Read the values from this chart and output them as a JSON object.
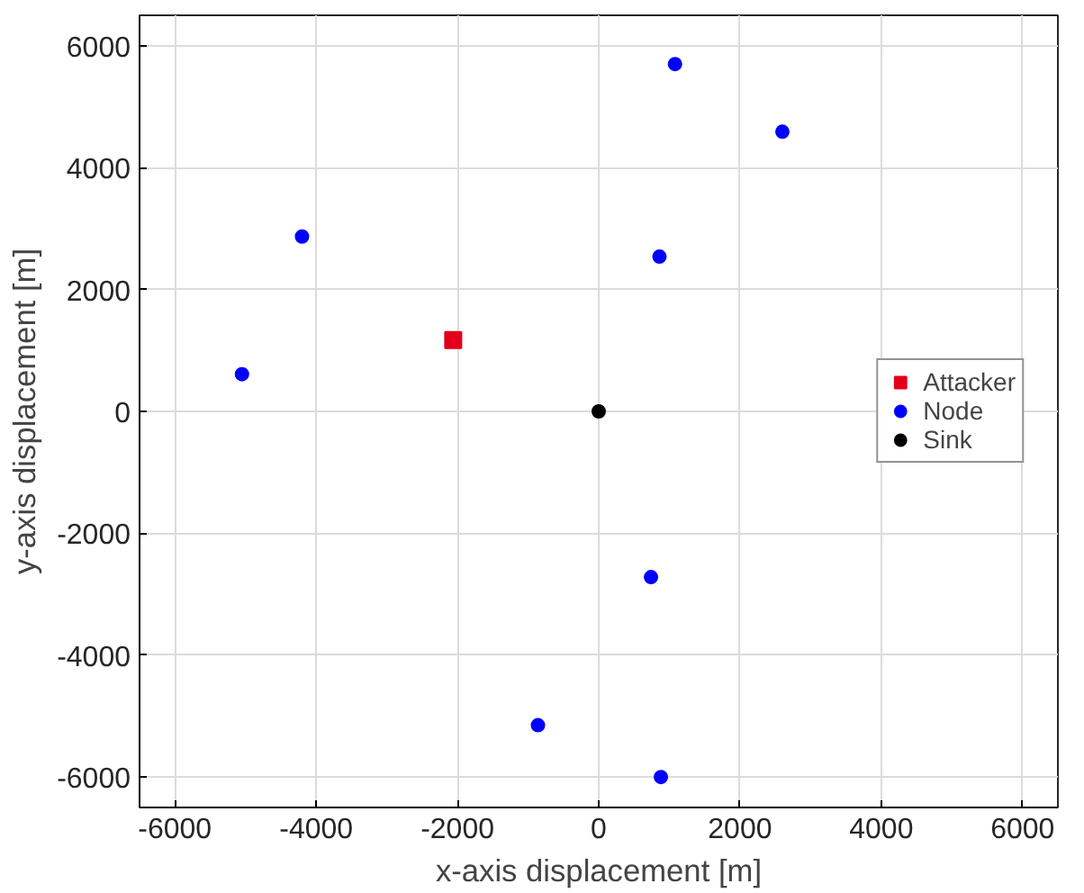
{
  "chart_data": {
    "type": "scatter",
    "xlabel": "x-axis displacement [m]",
    "ylabel": "y-axis displacement [m]",
    "xlim": [
      -6500,
      6500
    ],
    "ylim": [
      -6500,
      6500
    ],
    "xticks": [
      -6000,
      -4000,
      -2000,
      0,
      2000,
      4000,
      6000
    ],
    "yticks": [
      -6000,
      -4000,
      -2000,
      0,
      2000,
      4000,
      6000
    ],
    "grid": true,
    "legend": "right",
    "series": [
      {
        "name": "Attacker",
        "color": "#e3001b",
        "marker": "square",
        "x": [
          -2060
        ],
        "values": [
          1170
        ]
      },
      {
        "name": "Node",
        "color": "#0000ff",
        "marker": "circle",
        "x": [
          1080,
          2600,
          -4200,
          860,
          -5050,
          740,
          -860,
          880
        ],
        "values": [
          5700,
          4590,
          2870,
          2540,
          610,
          -2720,
          -5150,
          -6000
        ]
      },
      {
        "name": "Sink",
        "color": "#000000",
        "marker": "circle",
        "x": [
          0
        ],
        "values": [
          0
        ]
      }
    ]
  }
}
